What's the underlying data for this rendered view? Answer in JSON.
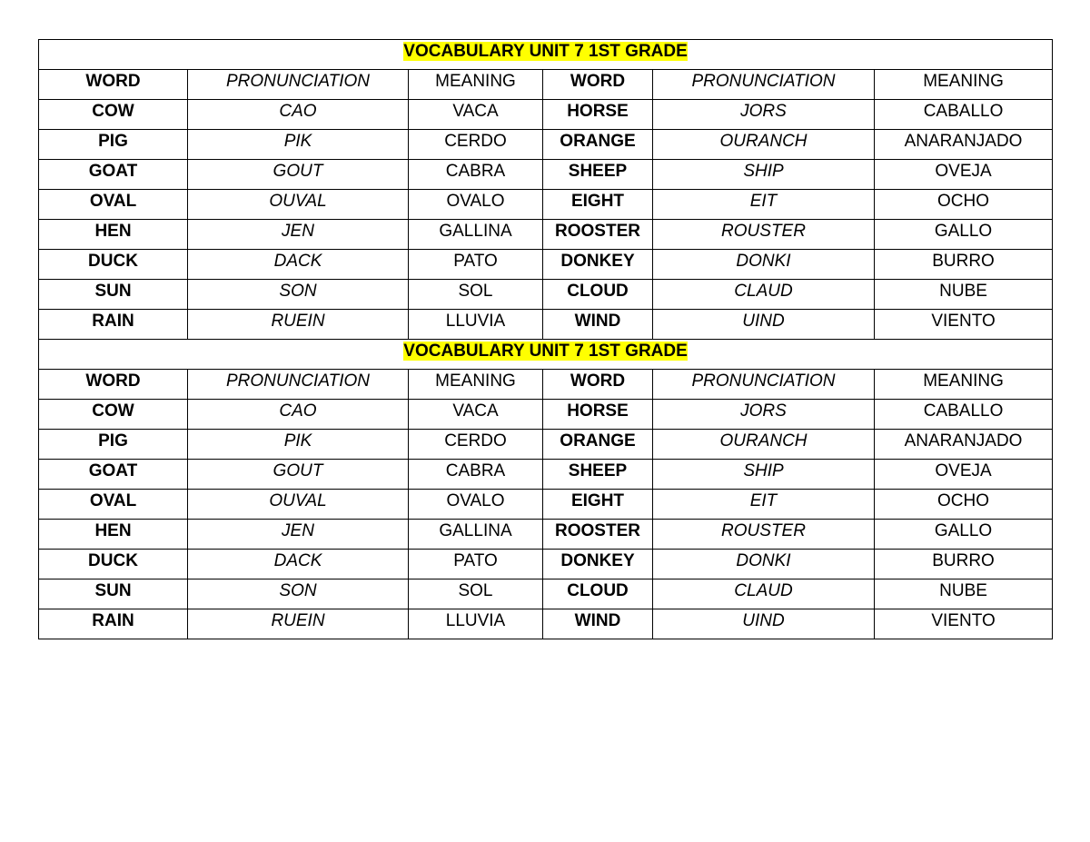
{
  "sections": [
    {
      "title": "VOCABULARY UNIT 7   1ST GRADE",
      "headers": [
        "WORD",
        "PRONUNCIATION",
        "MEANING",
        "WORD",
        "PRONUNCIATION",
        "MEANING"
      ],
      "rows": [
        [
          "COW",
          "CAO",
          "VACA",
          "HORSE",
          "JORS",
          "CABALLO"
        ],
        [
          "PIG",
          "PIK",
          "CERDO",
          "ORANGE",
          "OURANCH",
          "ANARANJADO"
        ],
        [
          "GOAT",
          "GOUT",
          "CABRA",
          "SHEEP",
          "SHIP",
          "OVEJA"
        ],
        [
          "OVAL",
          "OUVAL",
          "OVALO",
          "EIGHT",
          "EIT",
          "OCHO"
        ],
        [
          "HEN",
          "JEN",
          "GALLINA",
          "ROOSTER",
          "ROUSTER",
          "GALLO"
        ],
        [
          "DUCK",
          "DACK",
          "PATO",
          "DONKEY",
          "DONKI",
          "BURRO"
        ],
        [
          "SUN",
          "SON",
          "SOL",
          "CLOUD",
          "CLAUD",
          "NUBE"
        ],
        [
          "RAIN",
          "RUEIN",
          "LLUVIA",
          "WIND",
          "UIND",
          "VIENTO"
        ]
      ]
    },
    {
      "title": "VOCABULARY UNIT 7   1ST GRADE",
      "headers": [
        "WORD",
        "PRONUNCIATION",
        "MEANING",
        "WORD",
        "PRONUNCIATION",
        "MEANING"
      ],
      "rows": [
        [
          "COW",
          "CAO",
          "VACA",
          "HORSE",
          "JORS",
          "CABALLO"
        ],
        [
          "PIG",
          "PIK",
          "CERDO",
          "ORANGE",
          "OURANCH",
          "ANARANJADO"
        ],
        [
          "GOAT",
          "GOUT",
          "CABRA",
          "SHEEP",
          "SHIP",
          "OVEJA"
        ],
        [
          "OVAL",
          "OUVAL",
          "OVALO",
          "EIGHT",
          "EIT",
          "OCHO"
        ],
        [
          "HEN",
          "JEN",
          "GALLINA",
          "ROOSTER",
          "ROUSTER",
          "GALLO"
        ],
        [
          "DUCK",
          "DACK",
          "PATO",
          "DONKEY",
          "DONKI",
          "BURRO"
        ],
        [
          "SUN",
          "SON",
          "SOL",
          "CLOUD",
          "CLAUD",
          "NUBE"
        ],
        [
          "RAIN",
          "RUEIN",
          "LLUVIA",
          "WIND",
          "UIND",
          "VIENTO"
        ]
      ]
    }
  ],
  "colors": {
    "title_highlight": "#ffff00"
  }
}
